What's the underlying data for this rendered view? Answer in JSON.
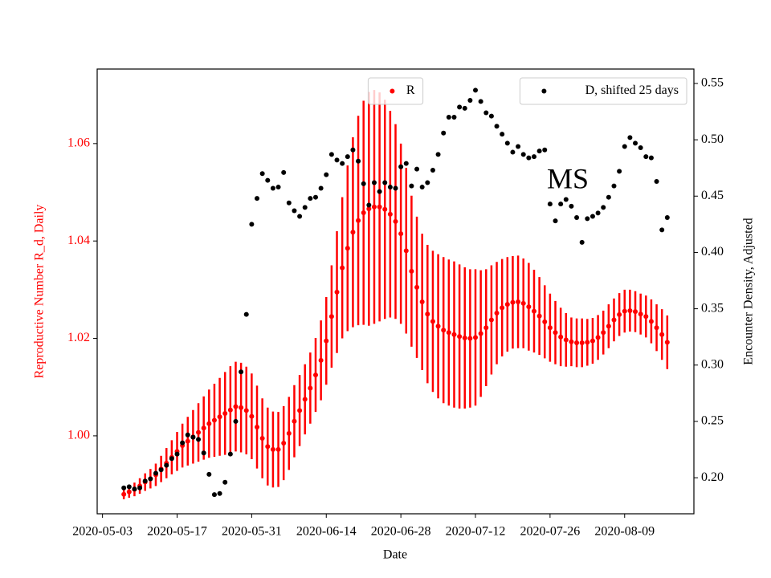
{
  "chart_data": {
    "type": "scatter",
    "xlabel": "Date",
    "ylabel": "Reproductive Number R_d, Daily",
    "y2label": "Encounter Density, Adjusted",
    "annotation": "MS",
    "xlim": [
      "2020-05-02",
      "2020-08-22"
    ],
    "xticks": [
      "2020-05-03",
      "2020-05-17",
      "2020-05-31",
      "2020-06-14",
      "2020-06-28",
      "2020-07-12",
      "2020-07-26",
      "2020-08-09"
    ],
    "ylim": [
      0.984,
      1.0753
    ],
    "yticks": [
      {
        "value": 1,
        "label": "1.00"
      },
      {
        "value": 1.02,
        "label": "1.02"
      },
      {
        "value": 1.04,
        "label": "1.04"
      },
      {
        "value": 1.06,
        "label": "1.06"
      }
    ],
    "y2lim": [
      0.168,
      0.5628
    ],
    "y2ticks": [
      {
        "value": 0.2,
        "label": "0.20"
      },
      {
        "value": 0.25,
        "label": "0.25"
      },
      {
        "value": 0.3,
        "label": "0.30"
      },
      {
        "value": 0.35,
        "label": "0.35"
      },
      {
        "value": 0.4,
        "label": "0.40"
      },
      {
        "value": 0.45,
        "label": "0.45"
      },
      {
        "value": 0.5,
        "label": "0.50"
      },
      {
        "value": 0.55,
        "label": "0.55"
      }
    ],
    "x": [
      "2020-05-07",
      "2020-05-08",
      "2020-05-09",
      "2020-05-10",
      "2020-05-11",
      "2020-05-12",
      "2020-05-13",
      "2020-05-14",
      "2020-05-15",
      "2020-05-16",
      "2020-05-17",
      "2020-05-18",
      "2020-05-19",
      "2020-05-20",
      "2020-05-21",
      "2020-05-22",
      "2020-05-23",
      "2020-05-24",
      "2020-05-25",
      "2020-05-26",
      "2020-05-27",
      "2020-05-28",
      "2020-05-29",
      "2020-05-30",
      "2020-05-31",
      "2020-06-01",
      "2020-06-02",
      "2020-06-03",
      "2020-06-04",
      "2020-06-05",
      "2020-06-06",
      "2020-06-07",
      "2020-06-08",
      "2020-06-09",
      "2020-06-10",
      "2020-06-11",
      "2020-06-12",
      "2020-06-13",
      "2020-06-14",
      "2020-06-15",
      "2020-06-16",
      "2020-06-17",
      "2020-06-18",
      "2020-06-19",
      "2020-06-20",
      "2020-06-21",
      "2020-06-22",
      "2020-06-23",
      "2020-06-24",
      "2020-06-25",
      "2020-06-26",
      "2020-06-27",
      "2020-06-28",
      "2020-06-29",
      "2020-06-30",
      "2020-07-01",
      "2020-07-02",
      "2020-07-03",
      "2020-07-04",
      "2020-07-05",
      "2020-07-06",
      "2020-07-07",
      "2020-07-08",
      "2020-07-09",
      "2020-07-10",
      "2020-07-11",
      "2020-07-12",
      "2020-07-13",
      "2020-07-14",
      "2020-07-15",
      "2020-07-16",
      "2020-07-17",
      "2020-07-18",
      "2020-07-19",
      "2020-07-20",
      "2020-07-21",
      "2020-07-22",
      "2020-07-23",
      "2020-07-24",
      "2020-07-25",
      "2020-07-26",
      "2020-07-27",
      "2020-07-28",
      "2020-07-29",
      "2020-07-30",
      "2020-07-31",
      "2020-08-01",
      "2020-08-02",
      "2020-08-03",
      "2020-08-04",
      "2020-08-05",
      "2020-08-06",
      "2020-08-07",
      "2020-08-08",
      "2020-08-09",
      "2020-08-10",
      "2020-08-11",
      "2020-08-12",
      "2020-08-13",
      "2020-08-14",
      "2020-08-15",
      "2020-08-16",
      "2020-08-17"
    ],
    "series": [
      {
        "name": "R",
        "color": "#ff0000",
        "axis": "y",
        "legend": "upper center",
        "values": [
          0.988,
          0.9885,
          0.989,
          0.9897,
          0.9905,
          0.9912,
          0.992,
          0.9932,
          0.9944,
          0.9956,
          0.9968,
          0.998,
          0.9989,
          0.9998,
          1.0007,
          1.0016,
          1.0025,
          1.0032,
          1.0039,
          1.0046,
          1.0053,
          1.006,
          1.0058,
          1.0052,
          1.004,
          1.0018,
          0.9995,
          0.9978,
          0.9972,
          0.9972,
          0.9985,
          1.0005,
          1.003,
          1.0052,
          1.0075,
          1.0098,
          1.0125,
          1.0155,
          1.0195,
          1.0245,
          1.0295,
          1.0345,
          1.0385,
          1.0418,
          1.0442,
          1.0458,
          1.0466,
          1.047,
          1.047,
          1.0465,
          1.0455,
          1.044,
          1.0415,
          1.038,
          1.0338,
          1.0305,
          1.0275,
          1.025,
          1.0235,
          1.0225,
          1.0217,
          1.0212,
          1.0208,
          1.0204,
          1.0201,
          1.02,
          1.0202,
          1.021,
          1.0222,
          1.0238,
          1.0252,
          1.0263,
          1.027,
          1.0274,
          1.0275,
          1.0272,
          1.0265,
          1.0256,
          1.0246,
          1.0234,
          1.0222,
          1.0212,
          1.0203,
          1.0197,
          1.0193,
          1.0191,
          1.0191,
          1.0192,
          1.0195,
          1.0202,
          1.0212,
          1.0225,
          1.0238,
          1.0249,
          1.0256,
          1.0257,
          1.0255,
          1.025,
          1.0245,
          1.0235,
          1.0222,
          1.0208,
          1.0192
        ],
        "errors": [
          0.001,
          0.0012,
          0.0014,
          0.0016,
          0.0018,
          0.002,
          0.0023,
          0.0027,
          0.0031,
          0.0035,
          0.004,
          0.0045,
          0.005,
          0.0055,
          0.006,
          0.0065,
          0.007,
          0.0075,
          0.008,
          0.0085,
          0.009,
          0.0092,
          0.0092,
          0.009,
          0.0088,
          0.0085,
          0.0082,
          0.008,
          0.0078,
          0.0077,
          0.0076,
          0.0075,
          0.0074,
          0.0073,
          0.0072,
          0.0073,
          0.0076,
          0.0082,
          0.009,
          0.0105,
          0.0125,
          0.0145,
          0.017,
          0.0195,
          0.0215,
          0.023,
          0.024,
          0.024,
          0.0235,
          0.0225,
          0.0212,
          0.02,
          0.0185,
          0.017,
          0.0155,
          0.0145,
          0.014,
          0.0142,
          0.0145,
          0.0148,
          0.015,
          0.015,
          0.015,
          0.0148,
          0.0145,
          0.0142,
          0.014,
          0.013,
          0.012,
          0.0112,
          0.0105,
          0.01,
          0.0097,
          0.0095,
          0.0095,
          0.0092,
          0.009,
          0.0085,
          0.008,
          0.0075,
          0.007,
          0.0065,
          0.006,
          0.0055,
          0.005,
          0.005,
          0.005,
          0.0048,
          0.0047,
          0.0046,
          0.0045,
          0.0045,
          0.0044,
          0.0044,
          0.0044,
          0.0043,
          0.0042,
          0.0042,
          0.0043,
          0.0045,
          0.0048,
          0.0052,
          0.0055
        ]
      },
      {
        "name": "D, shifted 25 days",
        "color": "#000000",
        "axis": "y2",
        "legend": "upper right",
        "values": [
          0.191,
          0.192,
          0.19,
          0.191,
          0.197,
          0.199,
          0.204,
          0.207,
          0.211,
          0.217,
          0.221,
          0.231,
          0.238,
          0.236,
          0.234,
          0.222,
          0.203,
          0.185,
          0.186,
          0.196,
          0.221,
          0.25,
          0.294,
          0.345,
          0.425,
          0.448,
          0.47,
          0.464,
          0.457,
          0.458,
          0.471,
          0.444,
          0.437,
          0.432,
          0.44,
          0.448,
          0.449,
          0.457,
          0.469,
          0.487,
          0.482,
          0.479,
          0.485,
          0.491,
          0.481,
          0.461,
          0.442,
          0.462,
          0.454,
          0.462,
          0.458,
          0.457,
          0.476,
          0.479,
          0.459,
          0.474,
          0.458,
          0.462,
          0.473,
          0.487,
          0.506,
          0.52,
          0.52,
          0.529,
          0.528,
          0.535,
          0.544,
          0.534,
          0.524,
          0.521,
          0.512,
          0.505,
          0.497,
          0.489,
          0.494,
          0.487,
          0.484,
          0.485,
          0.49,
          0.491,
          0.443,
          0.428,
          0.443,
          0.447,
          0.441,
          0.431,
          0.409,
          0.43,
          0.432,
          0.435,
          0.44,
          0.449,
          0.459,
          0.472,
          0.494,
          0.502,
          0.497,
          0.493,
          0.485,
          0.484,
          0.463,
          0.42,
          0.431
        ]
      }
    ]
  }
}
